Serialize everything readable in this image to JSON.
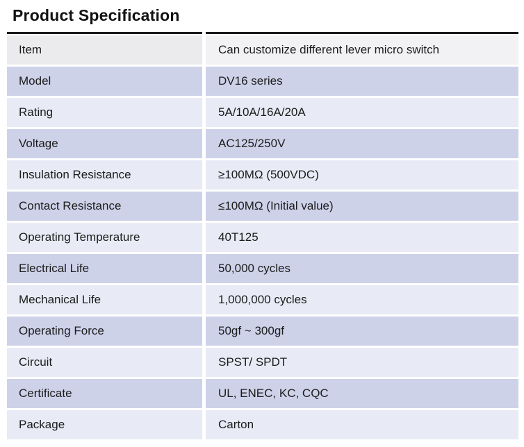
{
  "title": "Product Specification",
  "table": {
    "rows": [
      {
        "key": "Item",
        "value": "Can customize different lever micro switch"
      },
      {
        "key": "Model",
        "value": "DV16 series"
      },
      {
        "key": "Rating",
        "value": "5A/10A/16A/20A"
      },
      {
        "key": "Voltage",
        "value": "AC125/250V"
      },
      {
        "key": "Insulation Resistance",
        "value": "≥100MΩ (500VDC)"
      },
      {
        "key": "Contact Resistance",
        "value": "≤100MΩ (Initial value)"
      },
      {
        "key": "Operating Temperature",
        "value": "40T125"
      },
      {
        "key": "Electrical Life",
        "value": "50,000 cycles"
      },
      {
        "key": "Mechanical Life",
        "value": "1,000,000 cycles"
      },
      {
        "key": "Operating Force",
        "value": "50gf ~ 300gf"
      },
      {
        "key": "Circuit",
        "value": "SPST/ SPDT"
      },
      {
        "key": "Certificate",
        "value": "UL, ENEC, KC, CQC"
      },
      {
        "key": "Package",
        "value": "Carton"
      }
    ]
  },
  "colors": {
    "row_dark": "#cdd2e9",
    "row_light": "#e8eaf5",
    "first_row_key": "#ebebed",
    "first_row_value": "#f2f2f4",
    "top_border": "#1a1a1a",
    "text": "#1c1c1c"
  }
}
